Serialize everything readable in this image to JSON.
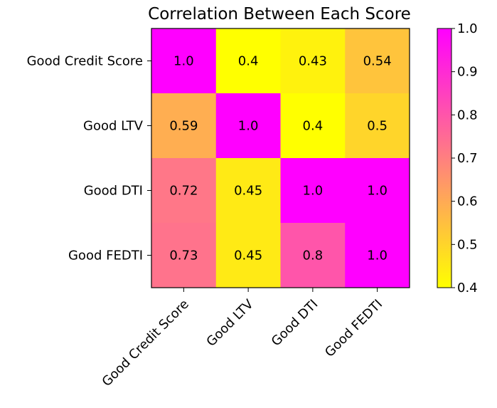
{
  "chart_data": {
    "type": "heatmap",
    "title": "Correlation Between Each Score",
    "row_labels": [
      "Good Credit Score",
      "Good LTV",
      "Good DTI",
      "Good FEDTI"
    ],
    "col_labels": [
      "Good Credit Score",
      "Good LTV",
      "Good DTI",
      "Good FEDTI"
    ],
    "values": [
      [
        1.0,
        0.4,
        0.43,
        0.54
      ],
      [
        0.59,
        1.0,
        0.4,
        0.5
      ],
      [
        0.72,
        0.45,
        1.0,
        1.0
      ],
      [
        0.73,
        0.45,
        0.8,
        1.0
      ]
    ],
    "cell_labels": [
      [
        "1.0",
        "0.4",
        "0.43",
        "0.54"
      ],
      [
        "0.59",
        "1.0",
        "0.4",
        "0.5"
      ],
      [
        "0.72",
        "0.45",
        "1.0",
        "1.0"
      ],
      [
        "0.73",
        "0.45",
        "0.8",
        "1.0"
      ]
    ],
    "colormap": "spring_r",
    "colormap_low": "#ffff00",
    "colormap_high": "#ff00ff",
    "colorbar": {
      "range": [
        0.4,
        1.0
      ],
      "ticks": [
        0.4,
        0.5,
        0.6,
        0.7,
        0.8,
        0.9,
        1.0
      ],
      "tick_labels": [
        "0.4",
        "0.5",
        "0.6",
        "0.7",
        "0.8",
        "0.9",
        "1.0"
      ],
      "position": "right"
    }
  }
}
